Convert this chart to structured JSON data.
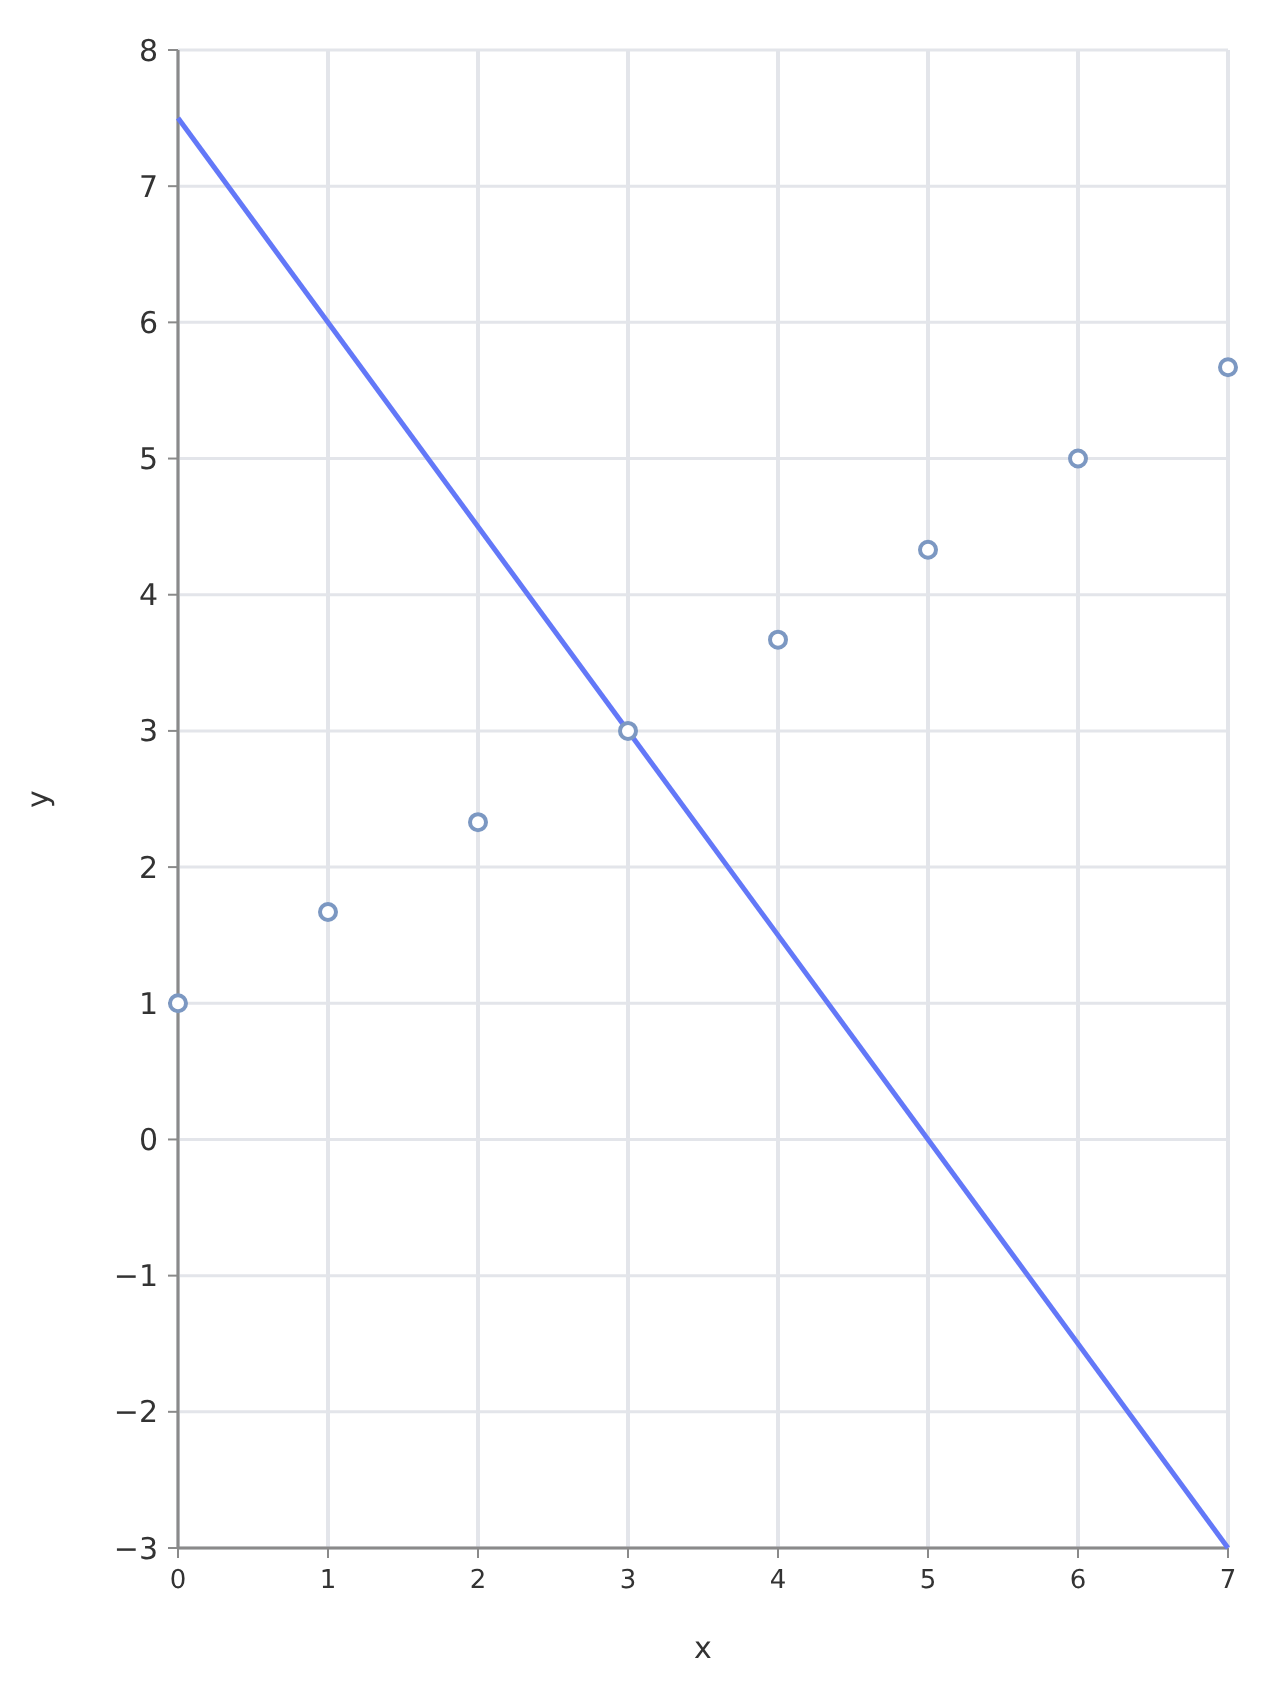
{
  "chart_data": {
    "type": "scatter",
    "xlabel": "x",
    "ylabel": "y",
    "xlim": [
      0,
      7
    ],
    "ylim": [
      -3,
      8
    ],
    "xticks": [
      0,
      1,
      2,
      3,
      4,
      5,
      6,
      7
    ],
    "yticks": [
      {
        "value": -3,
        "label": "−3"
      },
      {
        "value": -2,
        "label": "−2"
      },
      {
        "value": -1,
        "label": "−1"
      },
      0,
      1,
      2,
      3,
      4,
      5,
      6,
      7,
      8
    ],
    "grid": true,
    "series": [
      {
        "type": "line",
        "color": "#6378f8",
        "marker": "none",
        "x": [
          0,
          7
        ],
        "values": [
          7.5,
          -3
        ]
      },
      {
        "color": "#7c98c2",
        "marker": "circle",
        "x": [
          0,
          1,
          2,
          3,
          4,
          5,
          6,
          7
        ],
        "values": [
          1,
          1.67,
          2.33,
          3,
          3.67,
          4.33,
          5,
          5.67
        ]
      }
    ]
  }
}
